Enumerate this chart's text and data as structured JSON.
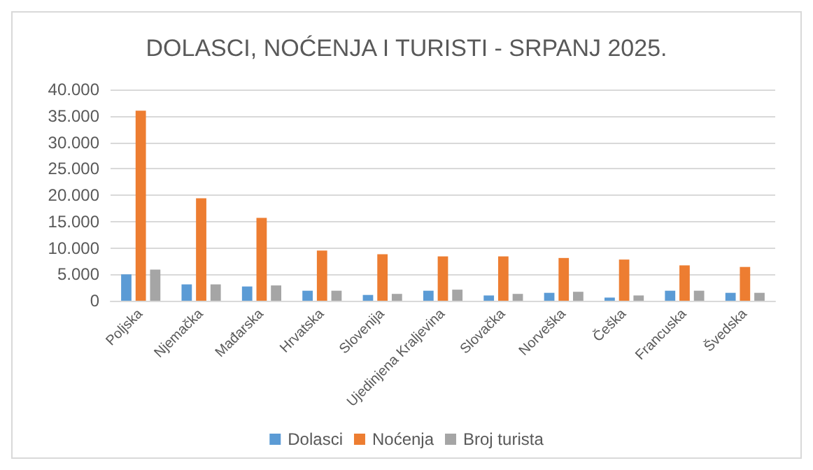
{
  "chart_data": {
    "type": "bar",
    "title": "DOLASCI, NOĆENJA I TURISTI - SRPANJ 2025.",
    "categories": [
      "Poljska",
      "Njemačka",
      "Mađarska",
      "Hrvatska",
      "Slovenija",
      "Ujedinjena Kraljevina",
      "Slovačka",
      "Norveška",
      "Češka",
      "Francuska",
      "Švedska"
    ],
    "series": [
      {
        "name": "Dolasci",
        "color": "#5b9bd5",
        "values": [
          5000,
          3100,
          2700,
          1900,
          1100,
          1900,
          1000,
          1500,
          600,
          1900,
          1500
        ]
      },
      {
        "name": "Noćenja",
        "color": "#ed7d31",
        "values": [
          36000,
          19400,
          15700,
          9500,
          8800,
          8400,
          8400,
          8100,
          7800,
          6700,
          6400
        ]
      },
      {
        "name": "Broj turista",
        "color": "#a5a5a5",
        "values": [
          5900,
          3100,
          2900,
          1900,
          1300,
          2100,
          1300,
          1700,
          1000,
          1900,
          1500
        ]
      }
    ],
    "ylim": [
      0,
      40000
    ],
    "yticks": [
      {
        "value": 0,
        "label": "0"
      },
      {
        "value": 5000,
        "label": "5.000"
      },
      {
        "value": 10000,
        "label": "10.000"
      },
      {
        "value": 15000,
        "label": "15.000"
      },
      {
        "value": 20000,
        "label": "20.000"
      },
      {
        "value": 25000,
        "label": "25.000"
      },
      {
        "value": 30000,
        "label": "30.000"
      },
      {
        "value": 35000,
        "label": "35.000"
      },
      {
        "value": 40000,
        "label": "40.000"
      }
    ],
    "grid": "y",
    "legend": "bottom"
  }
}
